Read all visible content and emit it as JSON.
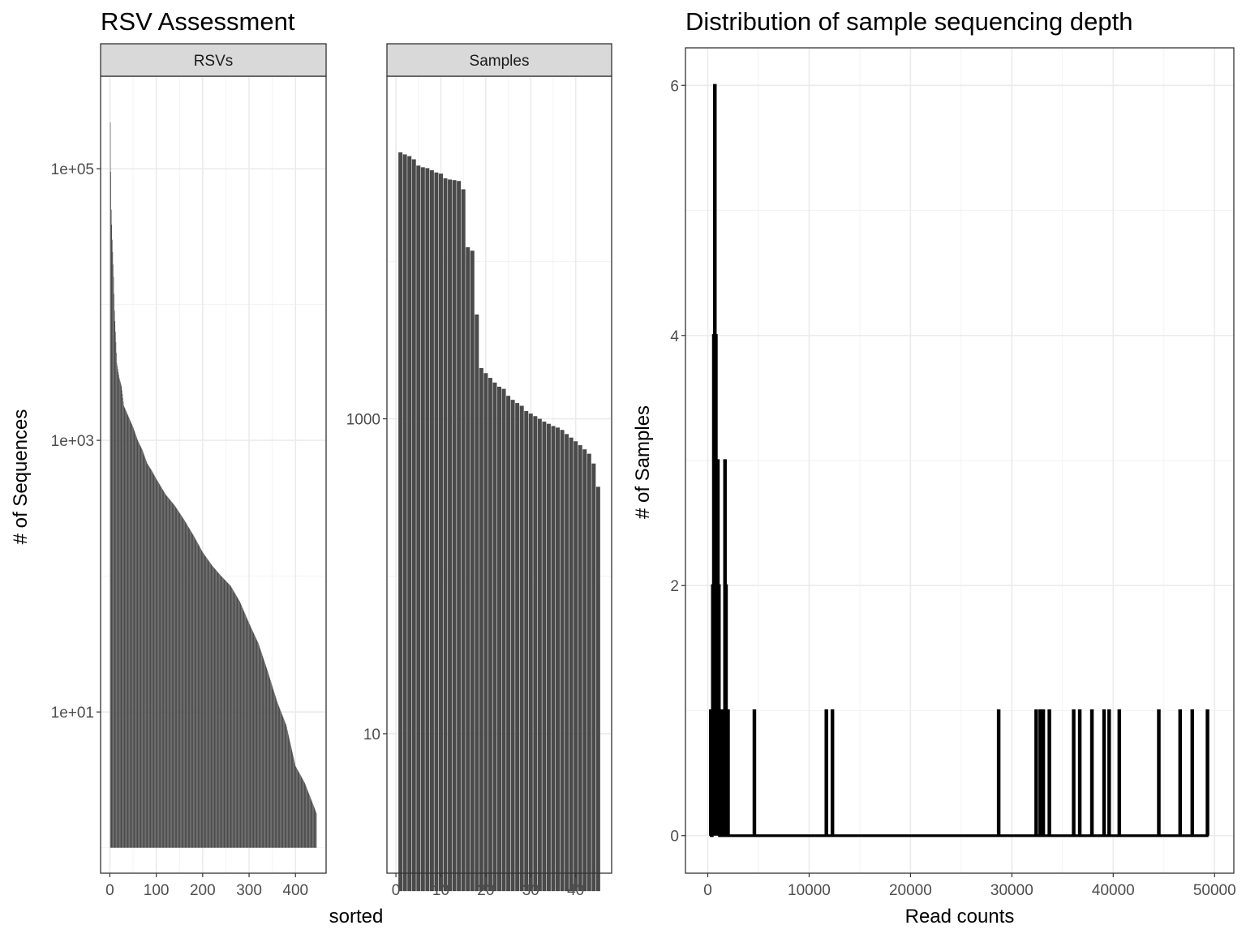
{
  "left_title": "RSV Assessment",
  "right_title": "Distribution of sample sequencing depth",
  "left_ylabel": "# of Sequences",
  "left_xlabel": "sorted",
  "right_ylabel": "# of Samples",
  "right_xlabel": "Read counts",
  "bar_color": "#4a4a4a",
  "line_color": "#000000",
  "chart_data": [
    {
      "type": "bar",
      "panel": "RSVs",
      "strip_label": "RSVs",
      "scale": "log10",
      "ylim": [
        0.65,
        480000
      ],
      "xlim": [
        -20,
        466
      ],
      "x_ticks": [
        0,
        100,
        200,
        300,
        400
      ],
      "y_ticks": [
        10,
        1000,
        100000
      ],
      "y_tick_labels": [
        "1e+01",
        "1e+03",
        "1e+05"
      ],
      "n_bars": 445,
      "baseline": 1,
      "rank_value_profile": [
        [
          1,
          220000
        ],
        [
          2,
          95000
        ],
        [
          3,
          50000
        ],
        [
          5,
          30000
        ],
        [
          8,
          16000
        ],
        [
          10,
          9000
        ],
        [
          15,
          3700
        ],
        [
          20,
          2900
        ],
        [
          25,
          2500
        ],
        [
          30,
          1800
        ],
        [
          40,
          1500
        ],
        [
          50,
          1250
        ],
        [
          60,
          1000
        ],
        [
          70,
          850
        ],
        [
          80,
          680
        ],
        [
          90,
          600
        ],
        [
          100,
          520
        ],
        [
          120,
          400
        ],
        [
          140,
          330
        ],
        [
          160,
          260
        ],
        [
          180,
          200
        ],
        [
          200,
          150
        ],
        [
          220,
          120
        ],
        [
          240,
          100
        ],
        [
          260,
          85
        ],
        [
          280,
          65
        ],
        [
          300,
          45
        ],
        [
          320,
          32
        ],
        [
          340,
          20
        ],
        [
          360,
          12
        ],
        [
          380,
          8
        ],
        [
          400,
          4
        ],
        [
          420,
          3
        ],
        [
          440,
          2
        ],
        [
          445,
          1.8
        ]
      ]
    },
    {
      "type": "bar",
      "panel": "Samples",
      "strip_label": "Samples",
      "scale": "log10",
      "ylim": [
        1.3,
        150000
      ],
      "xlim": [
        -2,
        48
      ],
      "x_ticks": [
        0,
        10,
        20,
        30,
        40
      ],
      "y_ticks": [
        10,
        1000
      ],
      "y_tick_labels": [
        "10",
        "1000"
      ],
      "baseline": 1,
      "values": [
        49300,
        47800,
        46600,
        44500,
        40600,
        39600,
        39100,
        37900,
        36700,
        36100,
        33700,
        33100,
        32800,
        32400,
        28700,
        12300,
        11700,
        4600,
        2100,
        1950,
        1820,
        1700,
        1600,
        1550,
        1400,
        1320,
        1260,
        1210,
        1120,
        1080,
        1040,
        1000,
        960,
        930,
        900,
        880,
        850,
        800,
        760,
        720,
        680,
        640,
        600,
        520,
        370
      ]
    },
    {
      "type": "line",
      "title": "Distribution of sample sequencing depth",
      "xlabel": "Read counts",
      "ylabel": "# of Samples",
      "xlim": [
        -2200,
        51900
      ],
      "ylim": [
        -0.3,
        6.3
      ],
      "x_ticks": [
        0,
        10000,
        20000,
        30000,
        40000,
        50000
      ],
      "y_ticks": [
        0,
        2,
        4,
        6
      ],
      "binwidth": 100,
      "bins": [
        [
          300,
          1
        ],
        [
          500,
          2
        ],
        [
          600,
          4
        ],
        [
          700,
          6
        ],
        [
          800,
          4
        ],
        [
          900,
          2
        ],
        [
          1000,
          3
        ],
        [
          1100,
          2
        ],
        [
          1300,
          1
        ],
        [
          1500,
          1
        ],
        [
          1700,
          3
        ],
        [
          1800,
          2
        ],
        [
          2000,
          1
        ],
        [
          4600,
          1
        ],
        [
          11700,
          1
        ],
        [
          12300,
          1
        ],
        [
          28700,
          1
        ],
        [
          32400,
          1
        ],
        [
          32800,
          1
        ],
        [
          33100,
          1
        ],
        [
          33700,
          1
        ],
        [
          36100,
          1
        ],
        [
          36700,
          1
        ],
        [
          37900,
          1
        ],
        [
          39100,
          1
        ],
        [
          39600,
          1
        ],
        [
          40600,
          1
        ],
        [
          44500,
          1
        ],
        [
          46600,
          1
        ],
        [
          47800,
          1
        ],
        [
          49300,
          1
        ]
      ]
    }
  ]
}
